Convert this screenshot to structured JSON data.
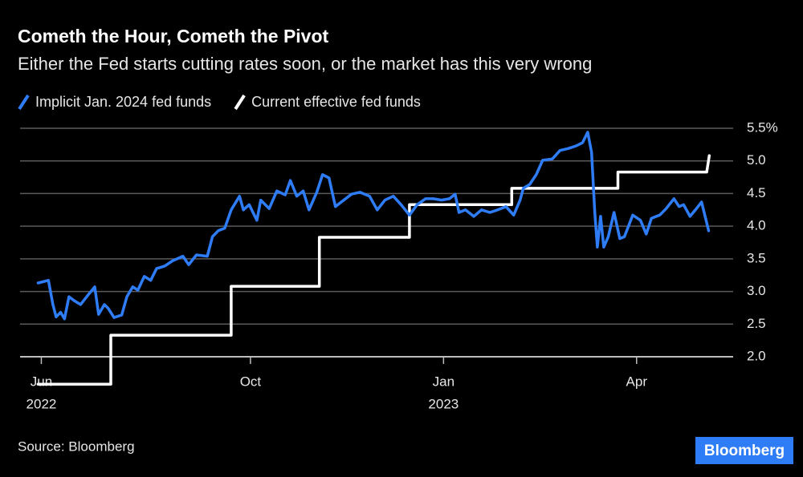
{
  "chart_data": {
    "type": "line",
    "title": "Cometh the Hour, Cometh the Pivot",
    "subtitle": "Either the Fed starts cutting rates soon, or the market has this very wrong",
    "source": "Source: Bloomberg",
    "brand": "Bloomberg",
    "xlim": [
      0.42,
      11.5
    ],
    "xticks": [
      {
        "value": 0.75,
        "label": "Jun"
      },
      {
        "value": 4,
        "label": "Oct"
      },
      {
        "value": 7,
        "label": "Jan"
      },
      {
        "value": 10,
        "label": "Apr"
      }
    ],
    "x_year_labels": [
      {
        "value": 0.75,
        "label": "2022"
      },
      {
        "value": 7,
        "label": "2023"
      }
    ],
    "ylim": [
      1.5,
      5.5
    ],
    "yticks": [
      {
        "value": 2.0,
        "label": "2.0"
      },
      {
        "value": 2.5,
        "label": "2.5"
      },
      {
        "value": 3.0,
        "label": "3.0"
      },
      {
        "value": 3.5,
        "label": "3.5"
      },
      {
        "value": 4.0,
        "label": "4.0"
      },
      {
        "value": 4.5,
        "label": "4.5"
      },
      {
        "value": 5.0,
        "label": "5.0"
      },
      {
        "value": 5.5,
        "label": "5.5%"
      }
    ],
    "grid": true,
    "series": [
      {
        "name": "Implicit Jan. 2024 fed funds",
        "color": "#2f7df6",
        "x": [
          0.7,
          0.86,
          0.93,
          0.98,
          1.05,
          1.11,
          1.18,
          1.26,
          1.36,
          1.48,
          1.58,
          1.64,
          1.73,
          1.79,
          1.88,
          2.0,
          2.08,
          2.17,
          2.25,
          2.35,
          2.45,
          2.54,
          2.67,
          2.79,
          2.95,
          3.04,
          3.16,
          3.33,
          3.41,
          3.5,
          3.6,
          3.7,
          3.83,
          3.89,
          3.98,
          4.1,
          4.16,
          4.29,
          4.41,
          4.54,
          4.62,
          4.72,
          4.82,
          4.91,
          5.03,
          5.12,
          5.22,
          5.32,
          5.45,
          5.57,
          5.7,
          5.85,
          5.97,
          6.09,
          6.22,
          6.34,
          6.47,
          6.59,
          6.72,
          6.84,
          6.97,
          7.09,
          7.18,
          7.24,
          7.34,
          7.47,
          7.59,
          7.72,
          7.84,
          7.97,
          8.09,
          8.19,
          8.24,
          8.34,
          8.44,
          8.54,
          8.69,
          8.81,
          8.94,
          9.06,
          9.16,
          9.24,
          9.3,
          9.35,
          9.39,
          9.44,
          9.49,
          9.56,
          9.65,
          9.74,
          9.81,
          9.94,
          10.06,
          10.15,
          10.23,
          10.36,
          10.46,
          10.58,
          10.66,
          10.73,
          10.83,
          10.93,
          11.01,
          11.06,
          11.12
        ],
        "values": [
          3.13,
          3.17,
          2.8,
          2.61,
          2.68,
          2.58,
          2.92,
          2.86,
          2.8,
          2.95,
          3.07,
          2.65,
          2.8,
          2.74,
          2.6,
          2.64,
          2.92,
          3.07,
          3.02,
          3.23,
          3.17,
          3.35,
          3.39,
          3.47,
          3.54,
          3.41,
          3.56,
          3.54,
          3.84,
          3.93,
          3.97,
          4.25,
          4.46,
          4.25,
          4.33,
          4.09,
          4.4,
          4.27,
          4.54,
          4.48,
          4.7,
          4.46,
          4.54,
          4.25,
          4.52,
          4.79,
          4.74,
          4.3,
          4.4,
          4.49,
          4.52,
          4.46,
          4.25,
          4.4,
          4.46,
          4.33,
          4.17,
          4.33,
          4.42,
          4.42,
          4.4,
          4.42,
          4.49,
          4.21,
          4.25,
          4.15,
          4.25,
          4.21,
          4.25,
          4.3,
          4.17,
          4.4,
          4.58,
          4.64,
          4.79,
          5.01,
          5.03,
          5.16,
          5.19,
          5.23,
          5.28,
          5.44,
          5.13,
          4.21,
          3.68,
          4.15,
          3.68,
          3.84,
          4.21,
          3.81,
          3.84,
          4.17,
          4.09,
          3.88,
          4.12,
          4.17,
          4.27,
          4.42,
          4.3,
          4.33,
          4.15,
          4.27,
          4.37,
          4.17,
          3.93
        ]
      },
      {
        "name": "Current effective fed funds",
        "color": "#ffffff",
        "x": [
          0.7,
          1.83,
          1.83,
          3.7,
          3.7,
          5.07,
          5.07,
          6.47,
          6.47,
          8.06,
          8.06,
          9.71,
          9.71,
          11.09,
          11.13
        ],
        "values": [
          1.58,
          1.58,
          2.33,
          2.33,
          3.08,
          3.08,
          3.83,
          3.83,
          4.33,
          4.33,
          4.58,
          4.58,
          4.83,
          4.83,
          5.08
        ]
      }
    ]
  }
}
